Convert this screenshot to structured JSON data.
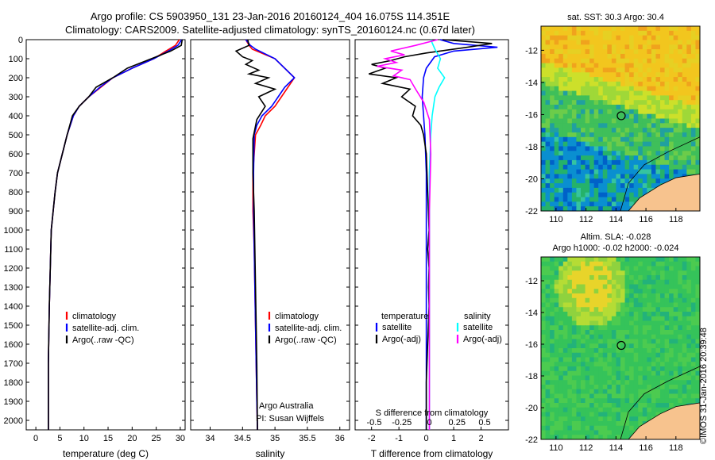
{
  "header": {
    "line1": "Argo profile: CS 5903950_131 23-Jan-2016 20160124_404 16.075S 114.351E",
    "line2": "Climatology: CARS2009. Satellite-adjusted climatology: synTS_20160124.nc (0.67d later)"
  },
  "stamp": "©IMOS 31-Jan-2016 20:39:48",
  "colors": {
    "clim": "#ff0000",
    "satclim": "#0000ff",
    "argo": "#000000",
    "tsat": "#0000ff",
    "ssat": "#00ffff",
    "sargo": "#ff00ff",
    "land": "#f7c38e"
  },
  "panels": {
    "temp": {
      "xlabel": "temperature (deg C)",
      "xticks": [
        "0",
        "5",
        "10",
        "15",
        "20",
        "25",
        "30"
      ],
      "legend": [
        "climatology",
        "satellite-adj. clim.",
        "Argo(..raw -QC)"
      ]
    },
    "sal": {
      "xlabel": "salinity",
      "xticks": [
        "34",
        "34.5",
        "35",
        "35.5",
        "36"
      ],
      "legend": [
        "climatology",
        "satellite-adj. clim.",
        "Argo(..raw -QC)"
      ],
      "credit1": "Argo Australia",
      "credit2": "PI: Susan Wijffels"
    },
    "diff": {
      "xlabel": "T difference from climatology",
      "xticks": [
        "-2",
        "-1",
        "0",
        "1",
        "2"
      ],
      "sticks_label": "S difference from climatology",
      "sticks": [
        "-0.5",
        "-0.25",
        "0",
        "0.25",
        "0.5"
      ],
      "leg_t_title": "temperature",
      "leg_t": [
        "satellite",
        "Argo(-adj)"
      ],
      "leg_s_title": "salinity",
      "leg_s": [
        "satellite",
        "Argo(-adj)"
      ]
    },
    "depth_ticks": [
      "0",
      "100",
      "200",
      "300",
      "400",
      "500",
      "600",
      "700",
      "800",
      "900",
      "1000",
      "1100",
      "1200",
      "1300",
      "1400",
      "1500",
      "1600",
      "1700",
      "1800",
      "1900",
      "2000"
    ]
  },
  "maps": {
    "sst_title": "sat. SST: 30.3  Argo: 30.4",
    "sla_title1": "Altim. SLA: -0.028",
    "sla_title2": "Argo h1000: -0.02  h2000: -0.024",
    "xticks": [
      "110",
      "112",
      "114",
      "116",
      "118"
    ],
    "yticks": [
      "-12",
      "-14",
      "-16",
      "-18",
      "-20",
      "-22"
    ],
    "float_lon": 114.351,
    "float_lat": -16.075
  },
  "chart_data": [
    {
      "type": "line",
      "title": "",
      "xlabel": "temperature (deg C)",
      "ylabel": "",
      "xlim": [
        -2,
        31
      ],
      "ylim": [
        2050,
        0
      ],
      "series": [
        {
          "name": "climatology",
          "x": [
            29.8,
            29,
            27,
            24.5,
            20,
            16,
            13.5,
            11,
            9,
            7.8,
            6.5,
            5.5,
            4.5,
            4,
            3.6,
            3.2,
            3,
            2.8,
            2.6,
            2.6
          ],
          "y": [
            0,
            30,
            60,
            100,
            150,
            200,
            250,
            300,
            350,
            400,
            500,
            600,
            700,
            800,
            900,
            1000,
            1200,
            1400,
            1700,
            2050
          ]
        },
        {
          "name": "satellite-adj. clim.",
          "x": [
            30.3,
            29.5,
            27.5,
            24.5,
            20,
            16,
            13.3,
            11,
            9,
            7.8,
            6.5,
            5.5,
            4.5,
            4,
            3.6,
            3.2,
            3,
            2.8,
            2.6,
            2.6
          ],
          "y": [
            0,
            30,
            60,
            100,
            150,
            200,
            250,
            300,
            350,
            400,
            500,
            600,
            700,
            800,
            900,
            1000,
            1200,
            1400,
            1700,
            2050
          ]
        },
        {
          "name": "Argo(..raw -QC)",
          "x": [
            30.4,
            30.2,
            28,
            24,
            19,
            16,
            12.5,
            11,
            9,
            7.6,
            6.5,
            5.5,
            4.5,
            4,
            3.6,
            3.2,
            3,
            2.8,
            2.6,
            2.6
          ],
          "y": [
            0,
            30,
            60,
            100,
            150,
            200,
            250,
            300,
            350,
            400,
            500,
            600,
            700,
            800,
            900,
            1000,
            1200,
            1400,
            1700,
            2050
          ]
        }
      ]
    },
    {
      "type": "line",
      "title": "",
      "xlabel": "salinity",
      "ylabel": "",
      "xlim": [
        33.7,
        36.15
      ],
      "ylim": [
        2050,
        0
      ],
      "series": [
        {
          "name": "climatology",
          "x": [
            34.55,
            34.6,
            34.65,
            35.0,
            35.3,
            35.2,
            35.1,
            35.0,
            34.85,
            34.78,
            34.7,
            34.66,
            34.66,
            34.68,
            34.69,
            34.7,
            34.71,
            34.72,
            34.73
          ],
          "y": [
            0,
            30,
            50,
            100,
            200,
            250,
            300,
            350,
            400,
            450,
            500,
            700,
            900,
            1100,
            1300,
            1500,
            1700,
            1900,
            2050
          ]
        },
        {
          "name": "satellite-adj. clim.",
          "x": [
            34.55,
            34.62,
            34.7,
            35.0,
            35.3,
            35.15,
            35.05,
            34.95,
            34.8,
            34.72,
            34.68,
            34.67,
            34.67,
            34.68,
            34.69,
            34.7,
            34.71,
            34.72,
            34.73
          ],
          "y": [
            0,
            30,
            50,
            100,
            200,
            250,
            300,
            350,
            400,
            450,
            500,
            700,
            900,
            1100,
            1300,
            1500,
            1700,
            1900,
            2050
          ]
        },
        {
          "name": "Argo(..raw -QC)",
          "x": [
            34.58,
            34.6,
            34.4,
            34.5,
            34.65,
            34.55,
            34.75,
            34.6,
            34.9,
            34.7,
            35.0,
            34.75,
            34.85,
            34.72,
            34.66,
            34.66,
            34.68,
            34.69,
            34.7,
            34.71,
            34.72,
            34.73
          ],
          "y": [
            0,
            30,
            60,
            90,
            110,
            130,
            160,
            180,
            200,
            230,
            260,
            300,
            350,
            420,
            520,
            700,
            900,
            1100,
            1300,
            1500,
            1700,
            2050
          ]
        }
      ]
    },
    {
      "type": "line",
      "title": "",
      "xlabel": "T difference from climatology",
      "ylabel": "",
      "xlim": [
        -2.6,
        3.0
      ],
      "ylim": [
        2050,
        0
      ],
      "series": [
        {
          "name": "satellite",
          "x": [
            0.5,
            1.0,
            1.8,
            2.6,
            1.0,
            0.3,
            0.0,
            -0.1,
            -0.15,
            -0.1,
            -0.05,
            0,
            0,
            0,
            0,
            0,
            0
          ],
          "y": [
            0,
            20,
            30,
            40,
            60,
            90,
            150,
            200,
            300,
            400,
            500,
            700,
            1000,
            1300,
            1600,
            1900,
            2050
          ]
        },
        {
          "name": "Argo(-adj)",
          "x": [
            0.6,
            2.4,
            1.5,
            0,
            -0.8,
            -1.3,
            -2.0,
            -1.5,
            -2.1,
            -1.1,
            -1.6,
            -0.6,
            -0.9,
            -0.4,
            -0.5,
            -0.2,
            -0.1,
            0,
            0.05,
            0.1,
            0.05,
            0.1,
            0.08,
            0.1,
            0.05,
            0.0,
            0.0
          ],
          "y": [
            0,
            20,
            40,
            70,
            90,
            110,
            130,
            150,
            180,
            200,
            230,
            260,
            300,
            350,
            400,
            450,
            500,
            600,
            800,
            1000,
            1100,
            1200,
            1300,
            1400,
            1600,
            1800,
            2050
          ]
        },
        {
          "name": "satellite ",
          "x": [
            0.05,
            0.2,
            0.4,
            0.3,
            0.55,
            0.35,
            0.2,
            0.1,
            0.05,
            0.0,
            0.0,
            0.0,
            0.0
          ],
          "y": [
            0,
            50,
            100,
            150,
            200,
            250,
            300,
            400,
            500,
            700,
            1000,
            1500,
            2050
          ]
        },
        {
          "name": "Argo(-adj) ",
          "x": [
            0.3,
            -0.5,
            -1.4,
            -0.9,
            -1.6,
            -1.2,
            -1.9,
            -1.0,
            -1.3,
            -0.7,
            -0.5,
            -0.2,
            0,
            0.05,
            0.0,
            0.0,
            0.0,
            0.0
          ],
          "y": [
            0,
            30,
            60,
            80,
            100,
            120,
            140,
            160,
            190,
            210,
            260,
            330,
            420,
            600,
            900,
            1200,
            1600,
            2050
          ]
        }
      ]
    }
  ]
}
